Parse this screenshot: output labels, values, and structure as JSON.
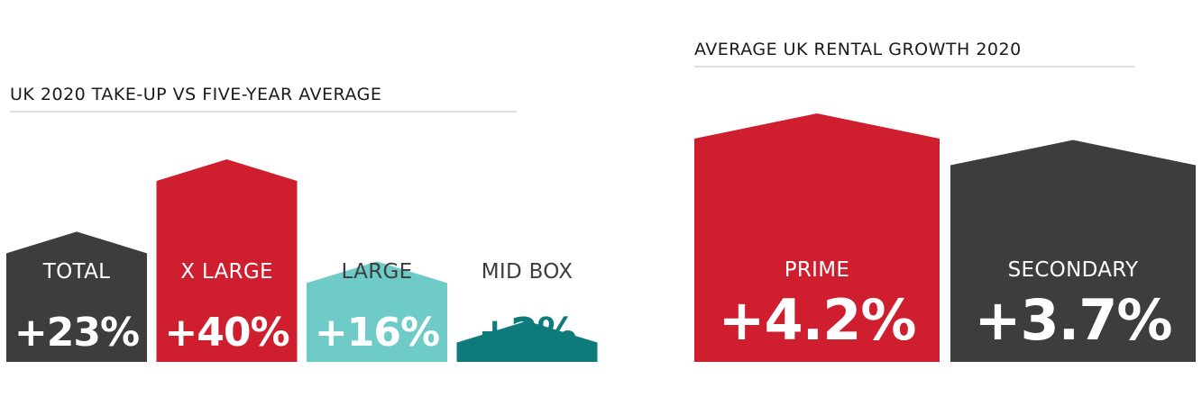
{
  "chart_data": [
    {
      "type": "bar",
      "title": "UK 2020 TAKE-UP VS FIVE-YEAR AVERAGE",
      "categories": [
        "TOTAL",
        "X LARGE",
        "LARGE",
        "MID BOX"
      ],
      "values": [
        23,
        40,
        16,
        2
      ],
      "value_labels": [
        "+23%",
        "+40%",
        "+16%",
        "+2%"
      ],
      "unit": "%",
      "colors": [
        "#3d3d3e",
        "#cf1f2f",
        "#6ecbc7",
        "#0f7a7a"
      ],
      "label_colors": [
        "#ffffff",
        "#ffffff",
        "#ffffff",
        "#0f7a7a"
      ],
      "category_label_colors": [
        "#ffffff",
        "#ffffff",
        "#3d3d3e",
        "#3d3d3e"
      ],
      "ylim": [
        0,
        40
      ]
    },
    {
      "type": "bar",
      "title": "AVERAGE UK RENTAL GROWTH 2020",
      "categories": [
        "PRIME",
        "SECONDARY"
      ],
      "values": [
        4.2,
        3.7
      ],
      "value_labels": [
        "+4.2%",
        "+3.7%"
      ],
      "unit": "%",
      "colors": [
        "#cf1f2f",
        "#3d3d3e"
      ],
      "label_colors": [
        "#ffffff",
        "#ffffff"
      ],
      "category_label_colors": [
        "#ffffff",
        "#ffffff"
      ],
      "ylim": [
        0,
        4.2
      ]
    }
  ]
}
